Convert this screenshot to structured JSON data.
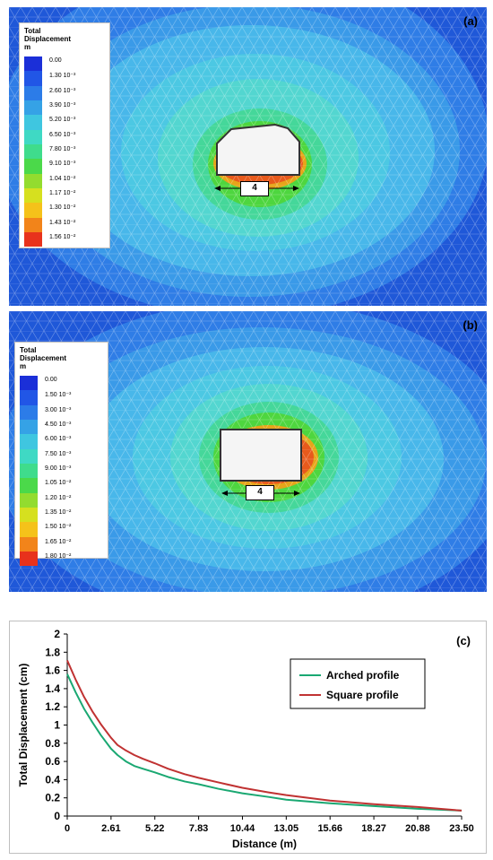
{
  "panel_a": {
    "label": "(a)",
    "legend": {
      "title": [
        "Total",
        "Displacement",
        "m"
      ],
      "entries": [
        "0.00",
        "1.30 10⁻³",
        "2.60 10⁻³",
        "3.90 10⁻³",
        "5.20 10⁻³",
        "6.50 10⁻³",
        "7.80 10⁻³",
        "9.10 10⁻³",
        "1.04 10⁻²",
        "1.17 10⁻²",
        "1.30 10⁻²",
        "1.43 10⁻²",
        "1.56 10⁻²"
      ]
    },
    "dimension": "4"
  },
  "panel_b": {
    "label": "(b)",
    "legend": {
      "title": [
        "Total",
        "Displacement",
        "m"
      ],
      "entries": [
        "0.00",
        "1.50 10⁻³",
        "3.00 10⁻³",
        "4.50 10⁻³",
        "6.00 10⁻³",
        "7.50 10⁻³",
        "9.00 10⁻³",
        "1.05 10⁻²",
        "1.20 10⁻²",
        "1.35 10⁻²",
        "1.50 10⁻²",
        "1.65 10⁻²",
        "1.80 10⁻²"
      ]
    },
    "dimension": "4"
  },
  "legend_colors": [
    "#1b2fd8",
    "#2156e6",
    "#2c7ce8",
    "#35a2e6",
    "#3fc6e0",
    "#3fd9c4",
    "#3fdc8c",
    "#4bd94a",
    "#93dc2f",
    "#d6e01f",
    "#f5c21a",
    "#f2841a",
    "#e8321c"
  ],
  "chart_data": {
    "type": "line",
    "label": "(c)",
    "xlabel": "Distance (m)",
    "ylabel": "Total Displacement (cm)",
    "xticks": [
      "0",
      "2.61",
      "5.22",
      "7.83",
      "10.44",
      "13.05",
      "15.66",
      "18.27",
      "20.88",
      "23.50"
    ],
    "xlim": [
      0,
      23.5
    ],
    "ylim": [
      0,
      2
    ],
    "yticks": [
      "0",
      "0.2",
      "0.4",
      "0.6",
      "0.8",
      "1",
      "1.2",
      "1.4",
      "1.6",
      "1.8",
      "2"
    ],
    "legend_position": "top-right",
    "series": [
      {
        "name": "Arched profile",
        "color": "#1aa872",
        "x": [
          0,
          0.5,
          1,
          1.5,
          2,
          2.61,
          3,
          3.5,
          4,
          4.5,
          5.22,
          6,
          7,
          7.83,
          9,
          10.44,
          12,
          13.05,
          15.66,
          18.27,
          20.88,
          23.5
        ],
        "y": [
          1.56,
          1.36,
          1.18,
          1.03,
          0.89,
          0.74,
          0.67,
          0.6,
          0.55,
          0.52,
          0.48,
          0.43,
          0.38,
          0.35,
          0.3,
          0.25,
          0.21,
          0.18,
          0.14,
          0.11,
          0.08,
          0.06
        ]
      },
      {
        "name": "Square profile",
        "color": "#c03232",
        "x": [
          0,
          0.5,
          1,
          1.5,
          2,
          2.61,
          3,
          3.5,
          4,
          4.5,
          5.22,
          6,
          7,
          7.83,
          9,
          10.44,
          12,
          13.05,
          15.66,
          18.27,
          20.88,
          23.5
        ],
        "y": [
          1.71,
          1.5,
          1.31,
          1.15,
          1.01,
          0.86,
          0.78,
          0.72,
          0.67,
          0.63,
          0.58,
          0.52,
          0.46,
          0.42,
          0.37,
          0.31,
          0.26,
          0.23,
          0.17,
          0.13,
          0.1,
          0.06
        ]
      }
    ]
  }
}
